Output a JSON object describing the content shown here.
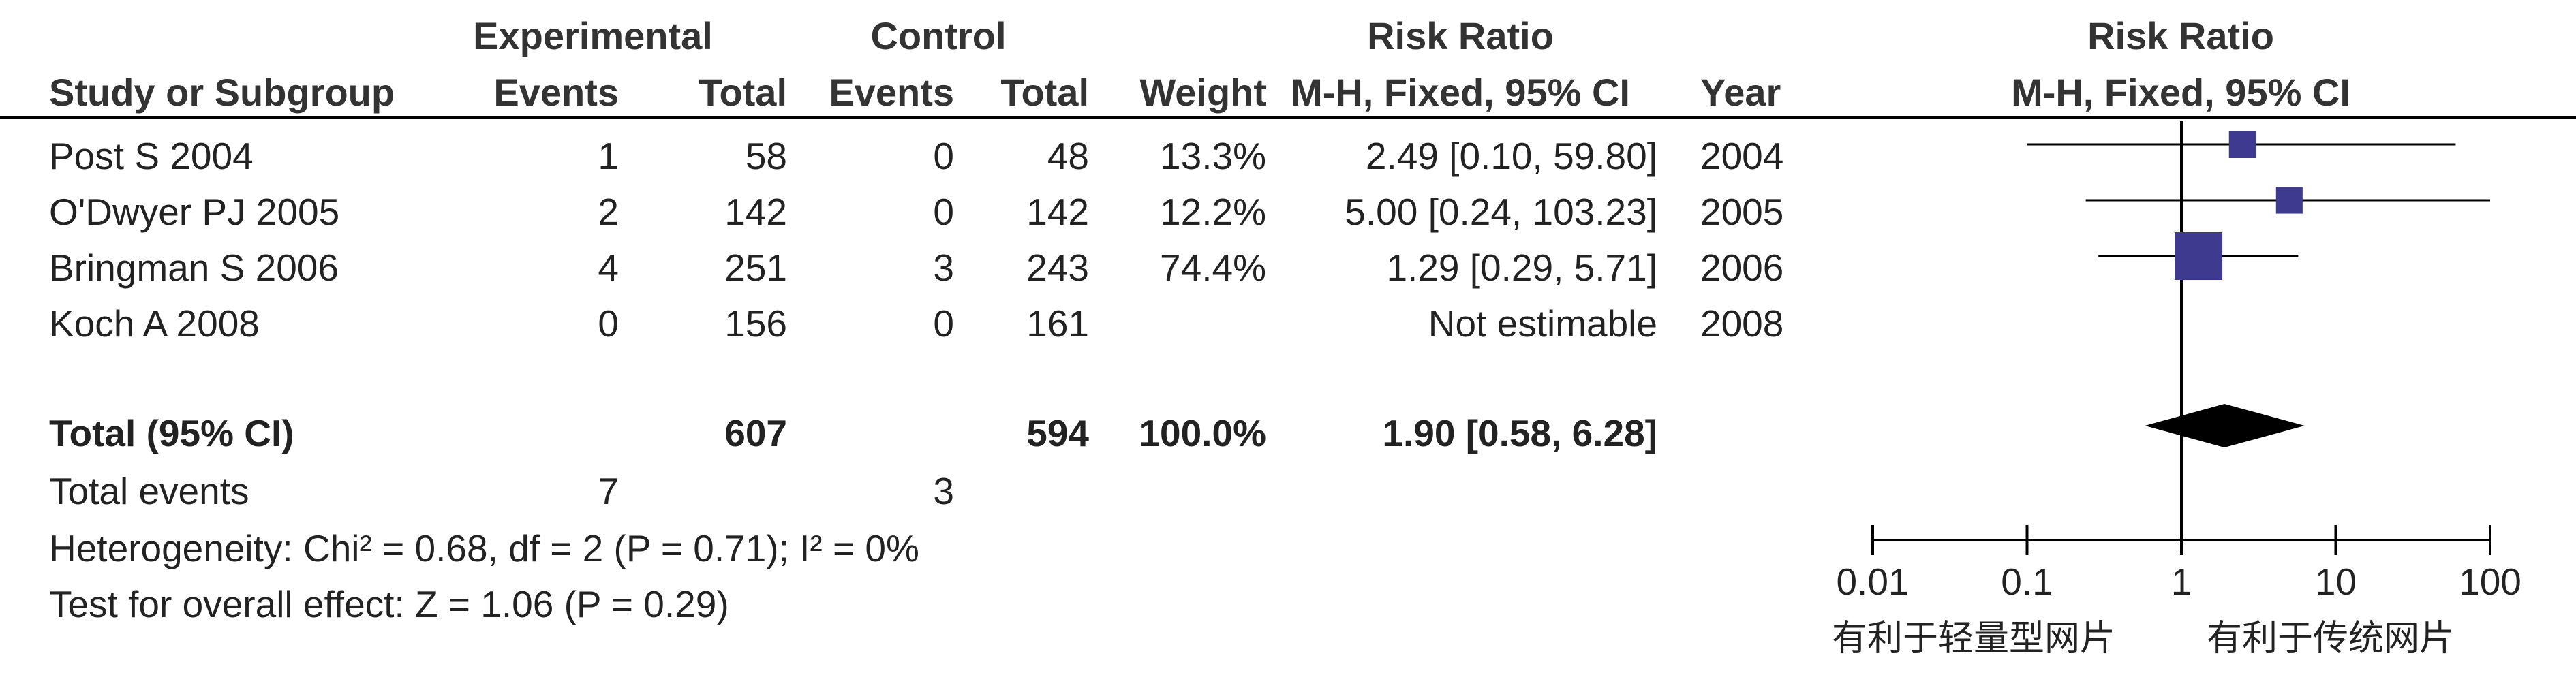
{
  "headers": {
    "group_experimental": "Experimental",
    "group_control": "Control",
    "group_risk_ratio": "Risk Ratio",
    "study": "Study or Subgroup",
    "exp_events": "Events",
    "exp_total": "Total",
    "ctl_events": "Events",
    "ctl_total": "Total",
    "weight": "Weight",
    "method": "M-H, Fixed, 95% CI",
    "year": "Year",
    "plot_title": "Risk Ratio",
    "plot_method": "M-H, Fixed, 95% CI"
  },
  "studies": [
    {
      "name": "Post S 2004",
      "exp_events": "1",
      "exp_total": "58",
      "ctl_events": "0",
      "ctl_total": "48",
      "weight": "13.3%",
      "ci_text": "2.49 [0.10, 59.80]",
      "year": "2004"
    },
    {
      "name": "O'Dwyer PJ 2005",
      "exp_events": "2",
      "exp_total": "142",
      "ctl_events": "0",
      "ctl_total": "142",
      "weight": "12.2%",
      "ci_text": "5.00 [0.24, 103.23]",
      "year": "2005"
    },
    {
      "name": "Bringman S 2006",
      "exp_events": "4",
      "exp_total": "251",
      "ctl_events": "3",
      "ctl_total": "243",
      "weight": "74.4%",
      "ci_text": "1.29 [0.29, 5.71]",
      "year": "2006"
    },
    {
      "name": "Koch A 2008",
      "exp_events": "0",
      "exp_total": "156",
      "ctl_events": "0",
      "ctl_total": "161",
      "weight": "",
      "ci_text": "Not estimable",
      "year": "2008"
    }
  ],
  "total": {
    "label": "Total (95% CI)",
    "exp_total": "607",
    "ctl_total": "594",
    "weight": "100.0%",
    "ci_text": "1.90 [0.58, 6.28]"
  },
  "total_events": {
    "label": "Total events",
    "exp": "7",
    "ctl": "3"
  },
  "heterogeneity": "Heterogeneity: Chi² = 0.68, df = 2 (P = 0.71); I² = 0%",
  "overall_effect": "Test for overall effect: Z = 1.06 (P = 0.29)",
  "chart_data": {
    "type": "scatter",
    "x_scale": "log",
    "xlim": [
      0.01,
      100
    ],
    "x_ticks": [
      "0.01",
      "0.1",
      "1",
      "10",
      "100"
    ],
    "x_tick_values": [
      0.01,
      0.1,
      1,
      10,
      100
    ],
    "reference_line": 1,
    "favours_left": "有利于轻量型网片",
    "favours_right": "有利于传统网片",
    "points": [
      {
        "study": "Post S 2004",
        "rr": 2.49,
        "lower": 0.1,
        "upper": 59.8,
        "weight": 13.3
      },
      {
        "study": "O'Dwyer PJ 2005",
        "rr": 5.0,
        "lower": 0.24,
        "upper": 103.23,
        "weight": 12.2
      },
      {
        "study": "Bringman S 2006",
        "rr": 1.29,
        "lower": 0.29,
        "upper": 5.71,
        "weight": 74.4
      }
    ],
    "pooled": {
      "rr": 1.9,
      "lower": 0.58,
      "upper": 6.28
    },
    "colors": {
      "marker": "#3d3a8f",
      "line": "#000000"
    }
  }
}
